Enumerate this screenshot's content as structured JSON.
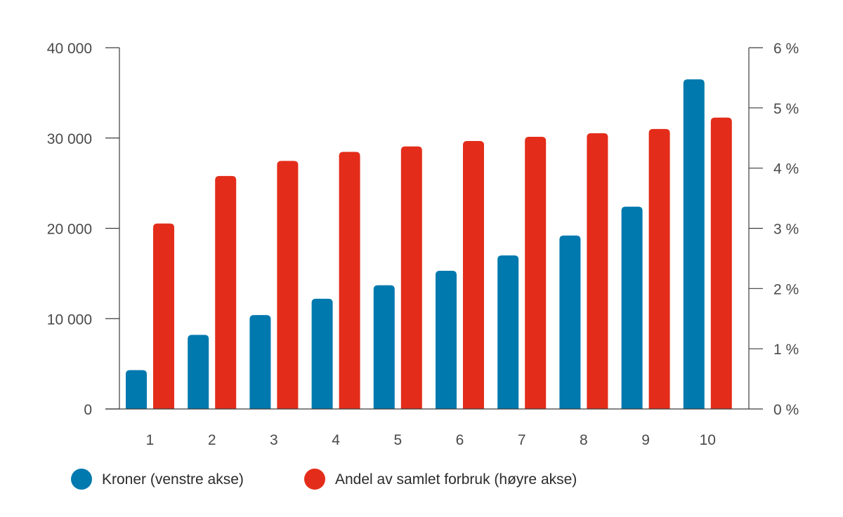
{
  "chart_data": {
    "type": "bar",
    "categories": [
      "1",
      "2",
      "3",
      "4",
      "5",
      "6",
      "7",
      "8",
      "9",
      "10"
    ],
    "series": [
      {
        "name": "Kroner (venstre akse)",
        "axis": "left",
        "color": "#0079ae",
        "values": [
          4300,
          8200,
          10400,
          12200,
          13700,
          15300,
          17000,
          19200,
          22400,
          36500
        ]
      },
      {
        "name": "Andel av samlet forbruk (høyre akse)",
        "axis": "right",
        "color": "#e32d1a",
        "values": [
          3.08,
          3.87,
          4.12,
          4.27,
          4.36,
          4.45,
          4.52,
          4.58,
          4.65,
          4.84
        ]
      }
    ],
    "y_left": {
      "range": [
        0,
        40000
      ],
      "ticks": [
        0,
        10000,
        20000,
        30000,
        40000
      ],
      "tick_labels": [
        "0",
        "10 000",
        "20 000",
        "30 000",
        "40 000"
      ]
    },
    "y_right": {
      "unit": "%",
      "range": [
        0,
        6
      ],
      "ticks": [
        0,
        1,
        2,
        3,
        4,
        5,
        6
      ],
      "tick_labels": [
        "0 %",
        "1 %",
        "2 %",
        "3 %",
        "4 %",
        "5 %",
        "6 %"
      ]
    },
    "grid": false,
    "legend_position": "bottom-left"
  }
}
